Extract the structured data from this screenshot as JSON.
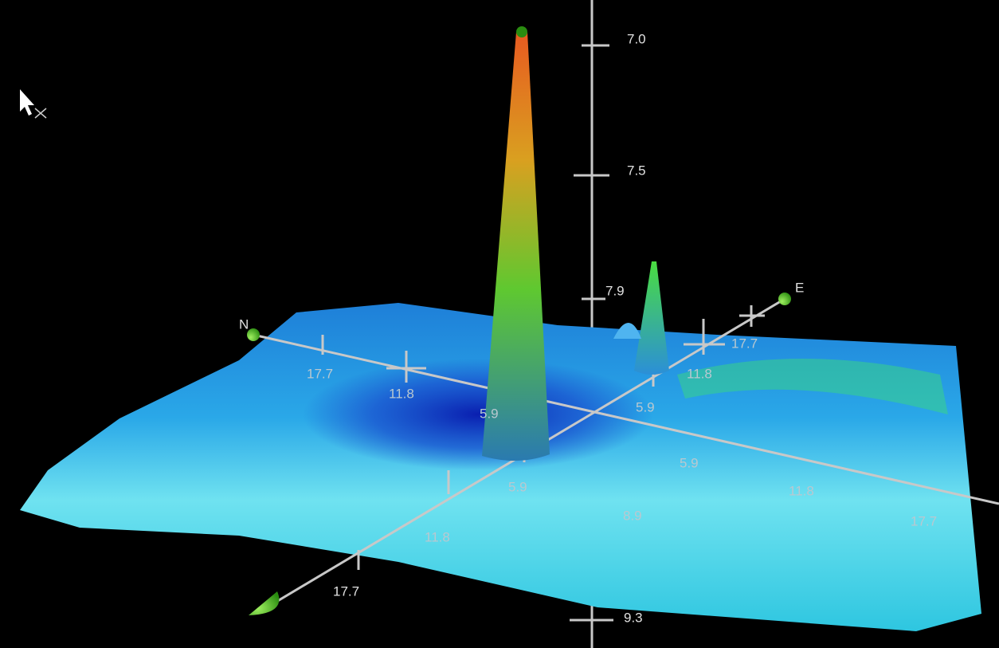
{
  "vertical_axis": {
    "labels": [
      "7.0",
      "7.5",
      "7.9",
      "9.3"
    ]
  },
  "direction_labels": [
    "N",
    "E"
  ],
  "grid_labels": [
    "17.7",
    "11.8",
    "5.9",
    "5.9",
    "11.8",
    "17.7",
    "5.9",
    "5.9",
    "11.8",
    "17.7",
    "8.9",
    "11.8",
    "17.7"
  ]
}
